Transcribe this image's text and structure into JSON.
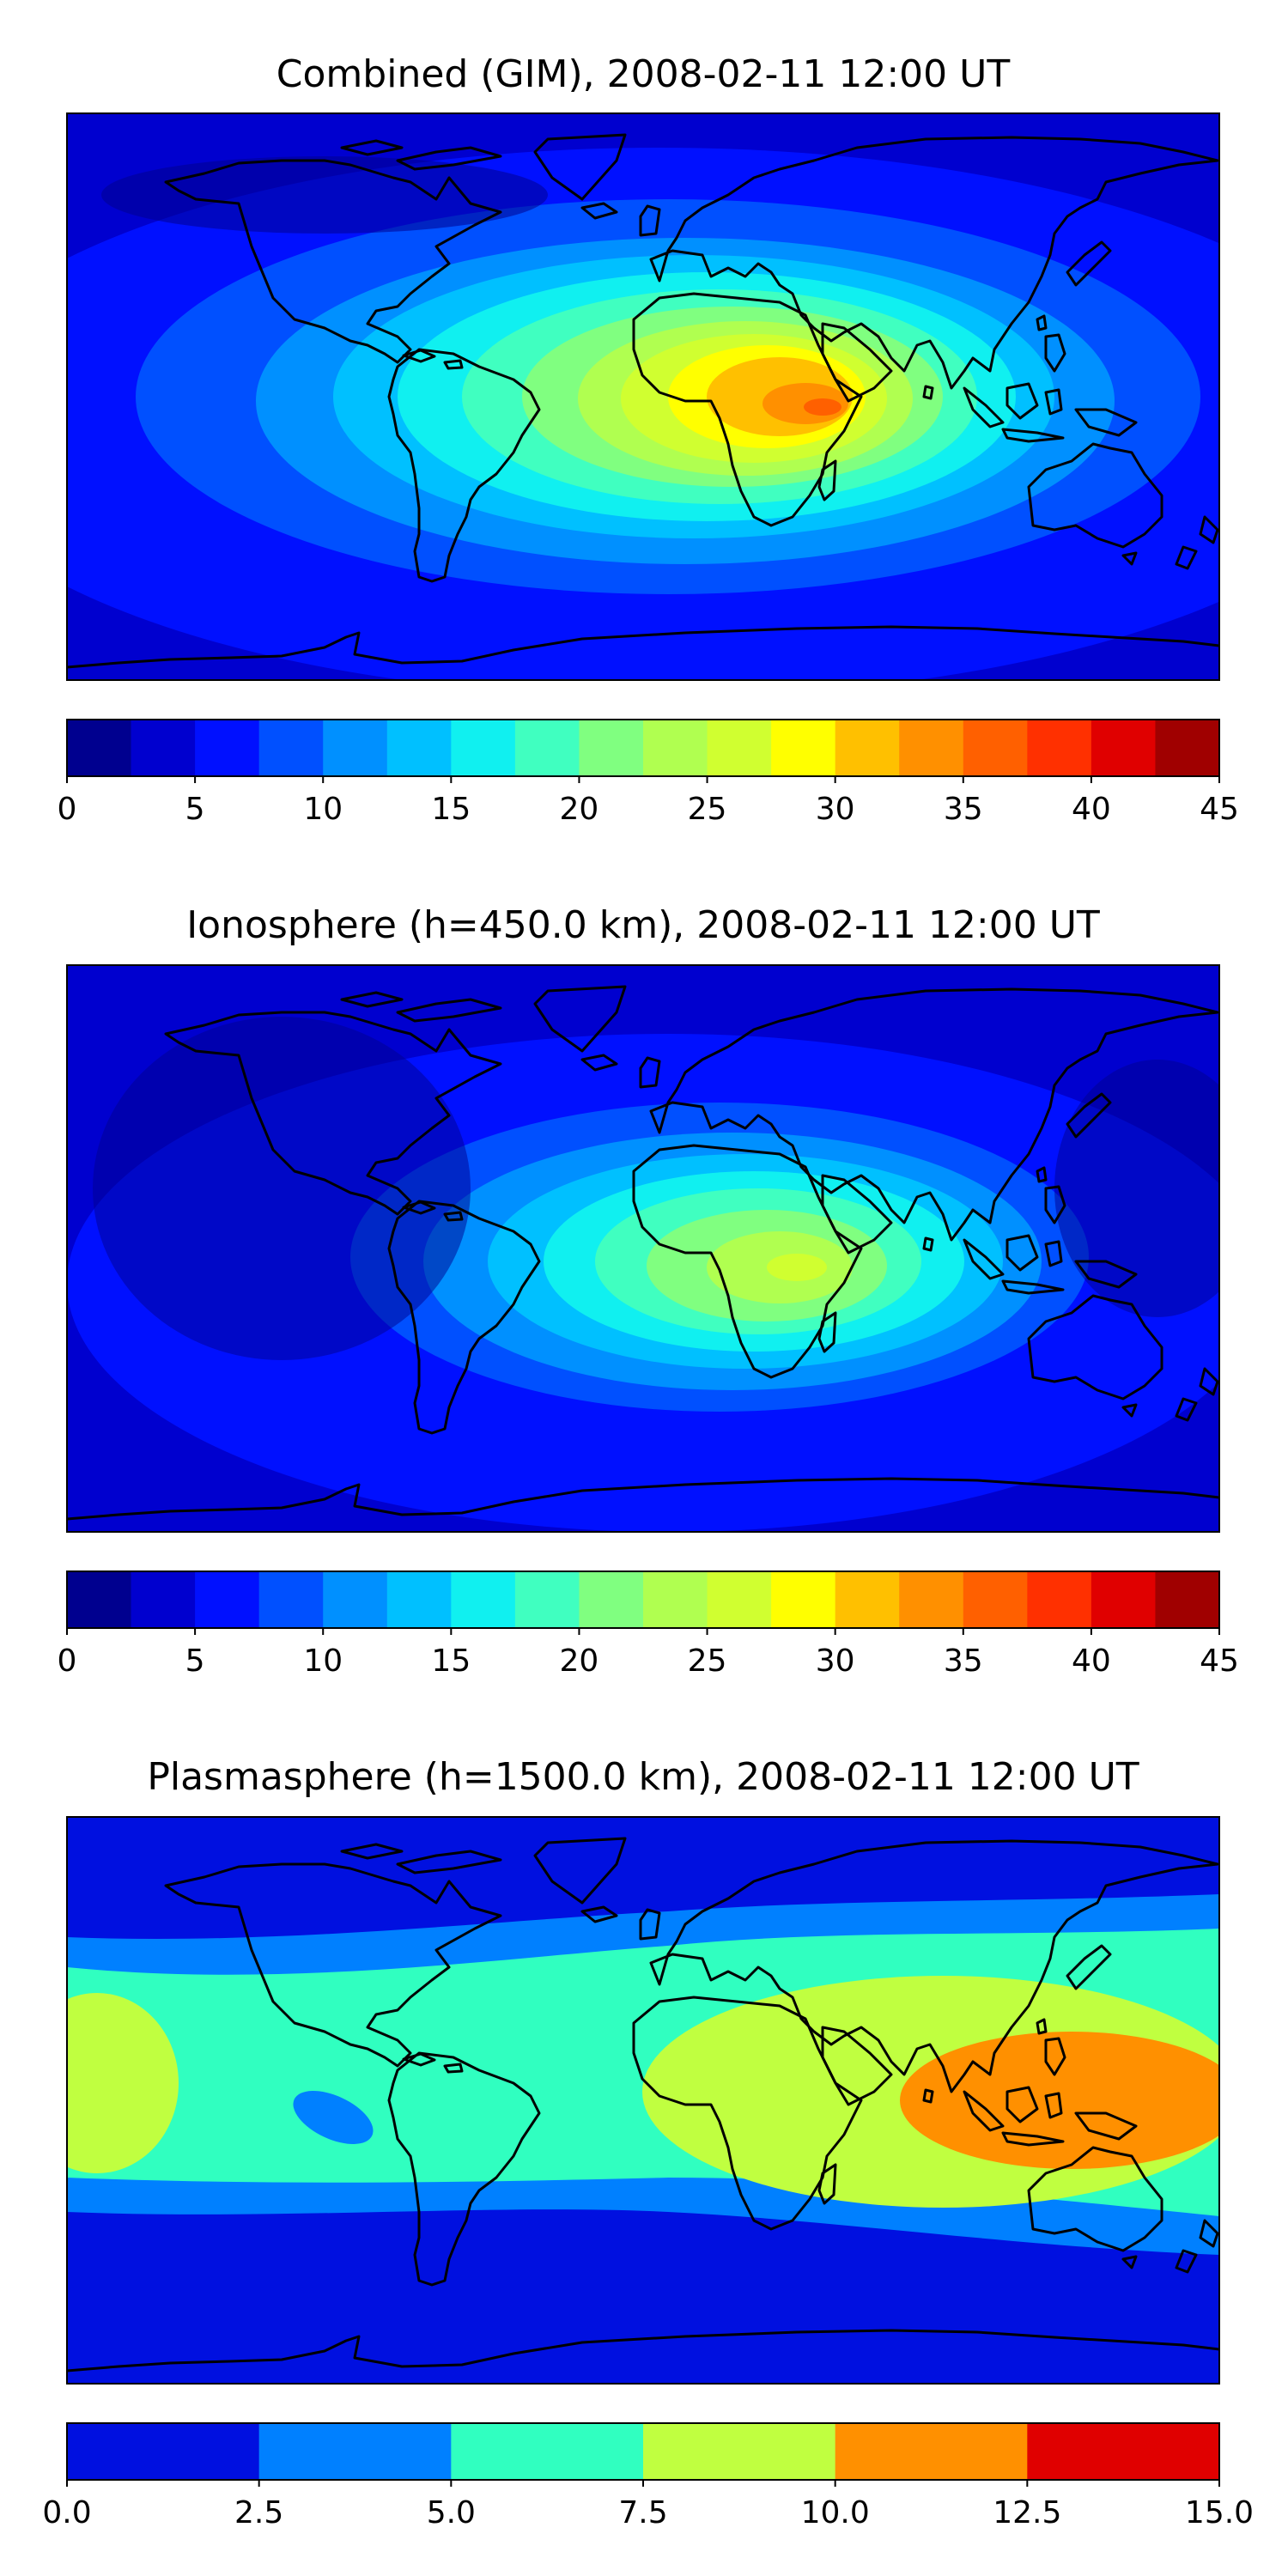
{
  "panels": [
    {
      "title": "Combined (GIM), 2008-02-11 12:00 UT",
      "colorbar": {
        "ticks": [
          "0",
          "5",
          "10",
          "15",
          "20",
          "25",
          "30",
          "35",
          "40",
          "45"
        ],
        "range": [
          0,
          45
        ],
        "colors": [
          "#00008f",
          "#0000cf",
          "#0010ff",
          "#0050ff",
          "#0090ff",
          "#00c0ff",
          "#10f0f0",
          "#40ffc0",
          "#80ff80",
          "#b0ff50",
          "#d0ff30",
          "#ffff00",
          "#ffc000",
          "#ff9000",
          "#ff6000",
          "#ff3000",
          "#e00000",
          "#a00000"
        ]
      }
    },
    {
      "title": "Ionosphere  (h=450.0 km), 2008-02-11 12:00 UT",
      "colorbar": {
        "ticks": [
          "0",
          "5",
          "10",
          "15",
          "20",
          "25",
          "30",
          "35",
          "40",
          "45"
        ],
        "range": [
          0,
          45
        ],
        "colors": [
          "#00008f",
          "#0000cf",
          "#0010ff",
          "#0050ff",
          "#0090ff",
          "#00c0ff",
          "#10f0f0",
          "#40ffc0",
          "#80ff80",
          "#b0ff50",
          "#d0ff30",
          "#ffff00",
          "#ffc000",
          "#ff9000",
          "#ff6000",
          "#ff3000",
          "#e00000",
          "#a00000"
        ]
      }
    },
    {
      "title": "Plasmasphere (h=1500.0 km), 2008-02-11 12:00 UT",
      "colorbar": {
        "ticks": [
          "0.0",
          "2.5",
          "5.0",
          "7.5",
          "10.0",
          "12.5",
          "15.0"
        ],
        "range": [
          0,
          15
        ],
        "colors": [
          "#0010e0",
          "#0080ff",
          "#30ffc0",
          "#c0ff40",
          "#ff9000",
          "#e00000"
        ]
      }
    }
  ]
}
